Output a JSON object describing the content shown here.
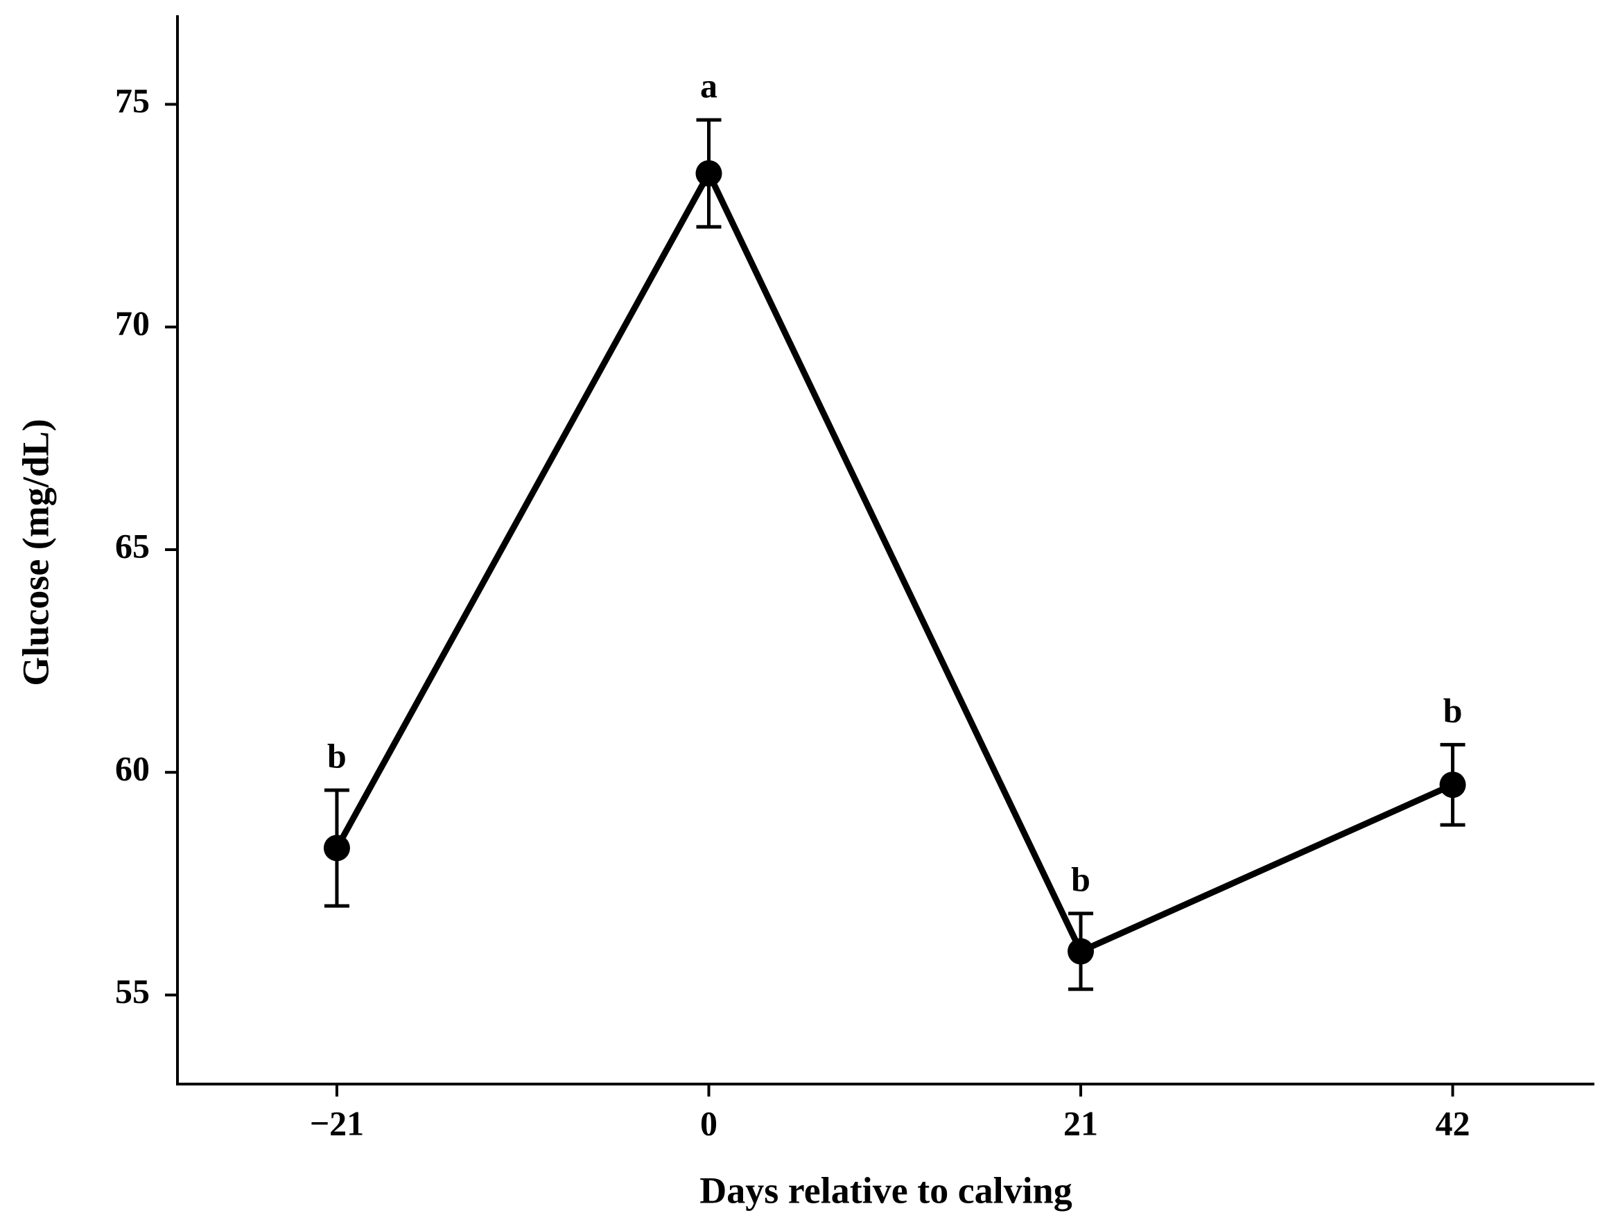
{
  "chart_data": {
    "type": "line",
    "x_label": "Days relative to calving",
    "y_label": "Glucose (mg/dL)",
    "x": [
      -21,
      0,
      21,
      42
    ],
    "values": [
      58.3,
      73.45,
      55.98,
      59.72
    ],
    "errors": [
      1.3,
      1.2,
      0.85,
      0.9
    ],
    "annotations": [
      "b",
      "a",
      "b",
      "b"
    ],
    "color": "#000000",
    "xlim": [
      -30,
      50
    ],
    "ylim": [
      53,
      77
    ],
    "xticks": [
      {
        "value": -21,
        "label": "−21"
      },
      0,
      21,
      42
    ],
    "yticks": [
      55,
      60,
      65,
      70,
      75
    ]
  }
}
